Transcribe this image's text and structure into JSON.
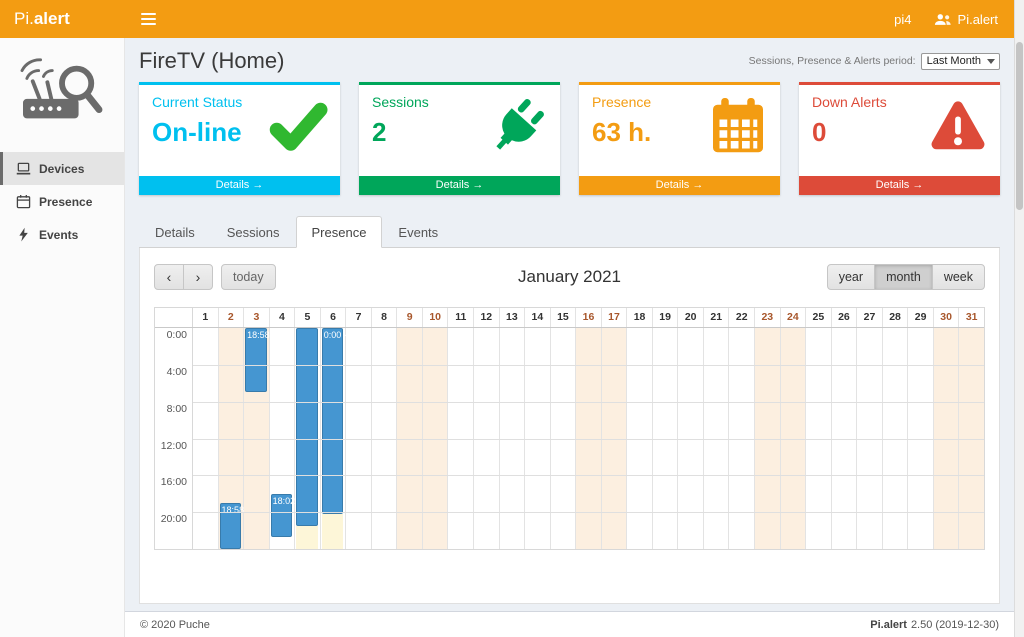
{
  "theme": {
    "navbar": "#f39c12",
    "info": "#00c0ef",
    "success": "#00a65a",
    "warning": "#f39c12",
    "danger": "#dd4b39",
    "event": "#4596d1",
    "pending": "#fdf6d8",
    "weekend_bg": "#fcefe0"
  },
  "navbar": {
    "brand_prefix": "Pi.",
    "brand_bold": "alert",
    "host": "pi4",
    "user": "Pi.alert"
  },
  "sidebar": {
    "items": [
      {
        "label": "Devices",
        "icon": "laptop-icon",
        "active": true
      },
      {
        "label": "Presence",
        "icon": "calendar-small-icon",
        "active": false
      },
      {
        "label": "Events",
        "icon": "bolt-icon",
        "active": false
      }
    ]
  },
  "page": {
    "title": "FireTV (Home)",
    "period_label": "Sessions, Presence & Alerts period:",
    "period_value": "Last Month"
  },
  "infoboxes": [
    {
      "title": "Current Status",
      "value": "On-line",
      "details_label": "Details",
      "color": "#00c0ef",
      "icon": "check-icon",
      "icon_color": "#30b830"
    },
    {
      "title": "Sessions",
      "value": "2",
      "details_label": "Details",
      "color": "#00a65a",
      "icon": "plug-icon"
    },
    {
      "title": "Presence",
      "value": "63 h.",
      "details_label": "Details",
      "color": "#f39c12",
      "icon": "calendar-icon"
    },
    {
      "title": "Down Alerts",
      "value": "0",
      "details_label": "Details",
      "color": "#dd4b39",
      "icon": "warning-icon"
    }
  ],
  "tabs": [
    {
      "label": "Details",
      "active": false
    },
    {
      "label": "Sessions",
      "active": false
    },
    {
      "label": "Presence",
      "active": true
    },
    {
      "label": "Events",
      "active": false
    }
  ],
  "calendar": {
    "title": "January 2021",
    "prev_label": "‹",
    "next_label": "›",
    "today_label": "today",
    "view_buttons": [
      "year",
      "month",
      "week"
    ],
    "active_view": "month",
    "days": [
      1,
      2,
      3,
      4,
      5,
      6,
      7,
      8,
      9,
      10,
      11,
      12,
      13,
      14,
      15,
      16,
      17,
      18,
      19,
      20,
      21,
      22,
      23,
      24,
      25,
      26,
      27,
      28,
      29,
      30,
      31
    ],
    "weekend_days": [
      2,
      3,
      9,
      10,
      16,
      17,
      23,
      24,
      30,
      31
    ],
    "time_labels": [
      "0:00",
      "4:00",
      "8:00",
      "12:00",
      "16:00",
      "20:00"
    ],
    "events": [
      {
        "day": 2,
        "start": "18:58",
        "end": "24:00",
        "label": "18:58",
        "type": "presence"
      },
      {
        "day": 3,
        "start": "0:00",
        "end": "7:00",
        "label": "18:58",
        "type": "presence"
      },
      {
        "day": 4,
        "start": "18:02",
        "end": "22:45",
        "label": "18:02",
        "type": "presence"
      },
      {
        "day": 5,
        "start": "0:00",
        "end": "21:30",
        "label": "",
        "type": "presence"
      },
      {
        "day": 6,
        "start": "0:00",
        "end": "20:15",
        "label": "0:00 -",
        "type": "presence"
      },
      {
        "day": 5,
        "start": "21:30",
        "end": "24:00",
        "label": "",
        "type": "pending"
      },
      {
        "day": 6,
        "start": "20:15",
        "end": "24:00",
        "label": "",
        "type": "pending"
      }
    ]
  },
  "footer": {
    "left": "© 2020 Puche",
    "brand": "Pi.alert",
    "version": "2.50 (2019-12-30)"
  }
}
